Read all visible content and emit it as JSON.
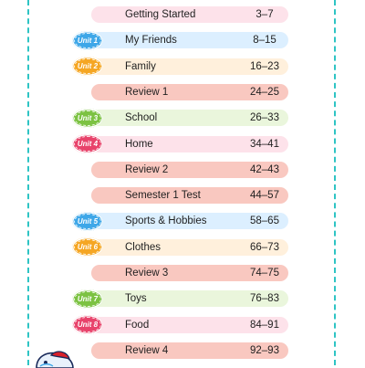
{
  "toc": [
    {
      "title": "Getting Started",
      "pages": "3–7",
      "badge": "",
      "color": "#fde2ea"
    },
    {
      "title": "My Friends",
      "pages": "8–15",
      "badge": "Unit 1",
      "color": "#dcefff",
      "badge_color": "#3ea7e8"
    },
    {
      "title": "Family",
      "pages": "16–23",
      "badge": "Unit 2",
      "color": "#fff0dc",
      "badge_color": "#f5a623"
    },
    {
      "title": "Review 1",
      "pages": "24–25",
      "badge": "",
      "color": "#f9c8c0"
    },
    {
      "title": "School",
      "pages": "26–33",
      "badge": "Unit 3",
      "color": "#eaf6dc",
      "badge_color": "#7cc242"
    },
    {
      "title": "Home",
      "pages": "34–41",
      "badge": "Unit 4",
      "color": "#fde2ea",
      "badge_color": "#e8436b"
    },
    {
      "title": "Review 2",
      "pages": "42–43",
      "badge": "",
      "color": "#f9c8c0"
    },
    {
      "title": "Semester 1 Test",
      "pages": "44–57",
      "badge": "",
      "color": "#f9c8c0"
    },
    {
      "title": "Sports & Hobbies",
      "pages": "58–65",
      "badge": "Unit 5",
      "color": "#dcefff",
      "badge_color": "#3ea7e8"
    },
    {
      "title": "Clothes",
      "pages": "66–73",
      "badge": "Unit 6",
      "color": "#fff0dc",
      "badge_color": "#f5a623"
    },
    {
      "title": "Review 3",
      "pages": "74–75",
      "badge": "",
      "color": "#f9c8c0"
    },
    {
      "title": "Toys",
      "pages": "76–83",
      "badge": "Unit 7",
      "color": "#eaf6dc",
      "badge_color": "#7cc242"
    },
    {
      "title": "Food",
      "pages": "84–91",
      "badge": "Unit 8",
      "color": "#fde2ea",
      "badge_color": "#e8436b"
    },
    {
      "title": "Review 4",
      "pages": "92–93",
      "badge": "",
      "color": "#f9c8c0"
    }
  ]
}
